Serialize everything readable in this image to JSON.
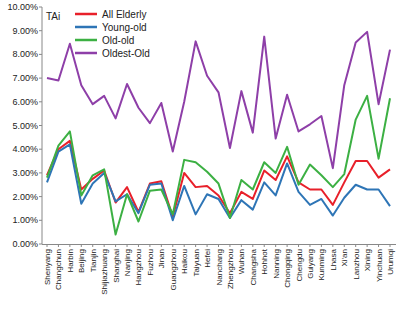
{
  "chart_data": {
    "type": "line",
    "annotations": [
      "TAi"
    ],
    "categories": [
      "Shenyang",
      "Changchun",
      "Harbin",
      "Beijing",
      "Tianjin",
      "Shijiazhuang",
      "Shanghai",
      "Nanjing",
      "Hangzhou",
      "Fuzhou",
      "Jinan",
      "Guangzhou",
      "Haikou",
      "Taiyuan",
      "Hefei",
      "Nanchang",
      "Zhengzhou",
      "Wuhan",
      "Changsha",
      "Hohhot",
      "Nanning",
      "Chongqing",
      "Chengdu",
      "Guiyang",
      "Kunming",
      "Lhasa",
      "Xi'an",
      "Lanzhou",
      "Xining",
      "Yinchuan",
      "Urumqi"
    ],
    "series": [
      {
        "name": "All Elderly",
        "color": "#e8202a",
        "values": [
          2.9,
          4.0,
          4.35,
          2.3,
          2.75,
          3.1,
          1.75,
          2.4,
          1.35,
          2.55,
          2.65,
          1.15,
          3.0,
          2.4,
          2.45,
          2.05,
          1.3,
          2.2,
          1.9,
          3.1,
          2.7,
          3.7,
          2.6,
          2.3,
          2.3,
          1.65,
          2.6,
          3.5,
          3.5,
          2.8,
          3.15
        ]
      },
      {
        "name": "Young-old",
        "color": "#2e75b6",
        "values": [
          2.6,
          3.9,
          4.2,
          1.7,
          2.55,
          3.0,
          1.8,
          2.1,
          1.3,
          2.5,
          2.55,
          1.0,
          2.45,
          1.25,
          2.1,
          1.9,
          1.1,
          1.85,
          1.45,
          2.6,
          2.05,
          3.4,
          2.2,
          1.65,
          1.9,
          1.2,
          1.95,
          2.5,
          2.3,
          2.3,
          1.6
        ]
      },
      {
        "name": "Old-old",
        "color": "#3cb043",
        "values": [
          2.8,
          4.15,
          4.75,
          2.05,
          2.9,
          3.15,
          0.4,
          2.1,
          0.95,
          2.25,
          2.3,
          1.25,
          3.55,
          3.45,
          3.05,
          2.55,
          1.1,
          2.7,
          2.3,
          3.45,
          3.0,
          4.1,
          2.5,
          3.35,
          2.9,
          2.4,
          2.95,
          5.25,
          6.25,
          3.6,
          6.15
        ]
      },
      {
        "name": "Oldest-Old",
        "color": "#8e3fa8",
        "values": [
          7.0,
          6.9,
          8.45,
          6.7,
          5.9,
          6.25,
          5.3,
          6.75,
          5.75,
          5.1,
          5.95,
          3.9,
          6.0,
          8.55,
          7.1,
          6.4,
          4.05,
          6.45,
          4.7,
          8.75,
          4.45,
          6.3,
          4.75,
          5.05,
          5.4,
          3.2,
          6.7,
          8.5,
          8.95,
          5.9,
          8.2
        ]
      }
    ],
    "ylim": [
      0,
      10
    ],
    "yticks": [
      {
        "value": 0,
        "label": "0.00%"
      },
      {
        "value": 1,
        "label": "1.00%"
      },
      {
        "value": 2,
        "label": "2.00%"
      },
      {
        "value": 3,
        "label": "3.00%"
      },
      {
        "value": 4,
        "label": "4.00%"
      },
      {
        "value": 5,
        "label": "5.00%"
      },
      {
        "value": 6,
        "label": "6.00%"
      },
      {
        "value": 7,
        "label": "7.00%"
      },
      {
        "value": 8,
        "label": "8.00%"
      },
      {
        "value": 9,
        "label": "9.00%"
      },
      {
        "value": 10,
        "label": "10.00%"
      }
    ],
    "grid": false,
    "legend": "upper left"
  }
}
